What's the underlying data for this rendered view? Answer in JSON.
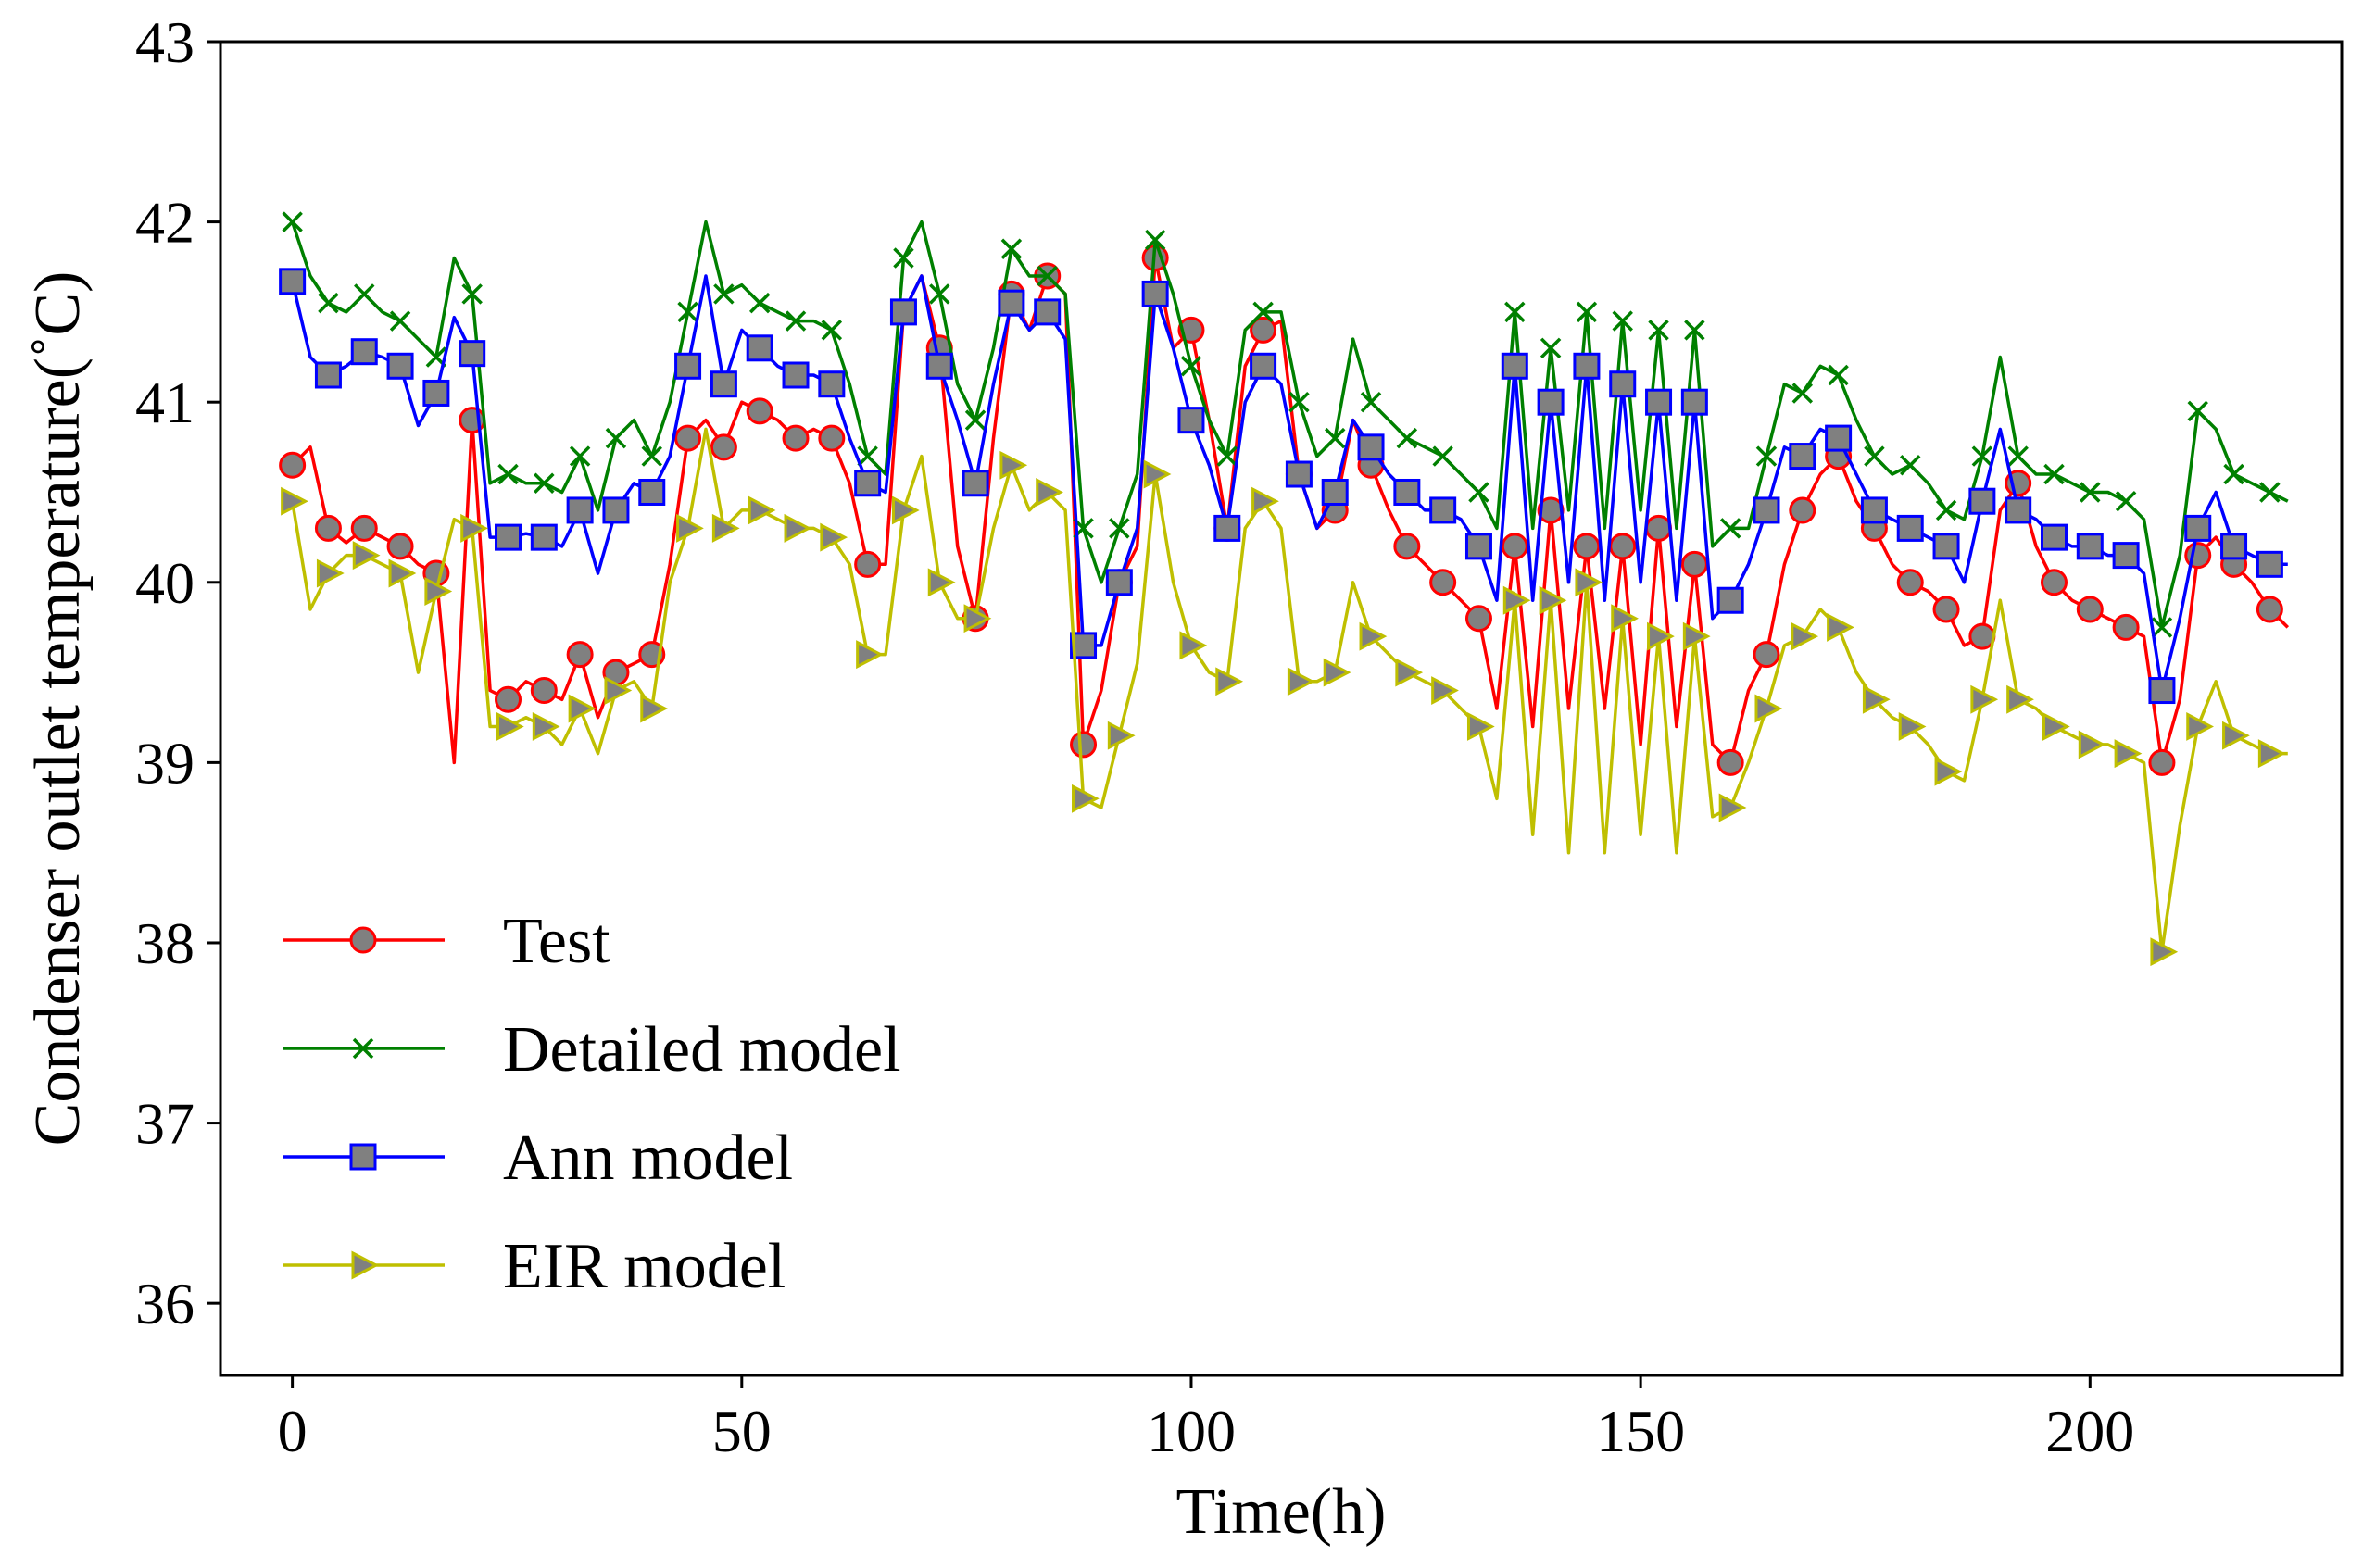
{
  "chart_data": {
    "type": "line",
    "title": "",
    "xlabel": "Time(h)",
    "ylabel": "Condenser outlet temperature(˚C)",
    "xlim": [
      -8,
      228
    ],
    "ylim": [
      35.6,
      43.0
    ],
    "xticks": [
      0,
      50,
      100,
      150,
      200
    ],
    "xtick_labels": [
      "0",
      "50",
      "100",
      "150",
      "200"
    ],
    "yticks": [
      36,
      37,
      38,
      39,
      40,
      41,
      42,
      43
    ],
    "ytick_labels": [
      "36",
      "37",
      "38",
      "39",
      "40",
      "41",
      "42",
      "43"
    ],
    "grid": false,
    "legend_position": "lower-left",
    "series": [
      {
        "name": "Test",
        "color": "#ff0000",
        "marker": "circle",
        "marker_face": "#808080",
        "x": [
          0,
          2,
          4,
          6,
          8,
          10,
          12,
          14,
          16,
          18,
          20,
          22,
          24,
          26,
          28,
          30,
          32,
          34,
          36,
          38,
          40,
          42,
          44,
          46,
          48,
          50,
          52,
          54,
          56,
          58,
          60,
          62,
          64,
          66,
          68,
          70,
          72,
          74,
          76,
          78,
          80,
          82,
          84,
          86,
          88,
          90,
          92,
          94,
          96,
          98,
          100,
          102,
          104,
          106,
          108,
          110,
          112,
          114,
          116,
          118,
          120,
          122,
          124,
          126,
          128,
          130,
          132,
          134,
          136,
          138,
          140,
          142,
          144,
          146,
          148,
          150,
          152,
          154,
          156,
          158,
          160,
          162,
          164,
          166,
          168,
          170,
          172,
          174,
          176,
          178,
          180,
          182,
          184,
          186,
          188,
          190,
          192,
          194,
          196,
          198,
          200,
          202,
          204,
          206,
          208,
          210,
          212,
          214,
          216,
          218,
          220,
          222
        ],
        "values": [
          40.65,
          40.75,
          40.3,
          40.22,
          40.3,
          40.25,
          40.2,
          40.1,
          40.05,
          39.0,
          40.9,
          39.4,
          39.35,
          39.45,
          39.4,
          39.35,
          39.6,
          39.25,
          39.5,
          39.55,
          39.6,
          40.1,
          40.8,
          40.9,
          40.75,
          41.0,
          40.95,
          40.9,
          40.8,
          40.85,
          40.8,
          40.55,
          40.1,
          40.1,
          41.5,
          41.7,
          41.3,
          40.2,
          39.8,
          40.8,
          41.6,
          41.4,
          41.7,
          41.6,
          39.1,
          39.4,
          40.0,
          40.2,
          41.8,
          41.3,
          41.4,
          40.9,
          40.3,
          41.2,
          41.4,
          41.45,
          40.6,
          40.3,
          40.4,
          40.9,
          40.65,
          40.4,
          40.2,
          40.1,
          40.0,
          39.9,
          39.8,
          39.3,
          40.2,
          39.2,
          40.4,
          39.3,
          40.2,
          39.3,
          40.2,
          39.1,
          40.3,
          39.2,
          40.1,
          39.1,
          39.0,
          39.4,
          39.6,
          40.1,
          40.4,
          40.6,
          40.7,
          40.45,
          40.3,
          40.1,
          40.0,
          39.95,
          39.85,
          39.65,
          39.7,
          40.4,
          40.55,
          40.2,
          40.0,
          39.9,
          39.85,
          39.8,
          39.75,
          39.7,
          39.0,
          39.35,
          40.15,
          40.25,
          40.1,
          40.0,
          39.85,
          39.75
        ]
      },
      {
        "name": "Detailed model",
        "color": "#008000",
        "marker": "x",
        "marker_face": "#008000",
        "x": [
          0,
          2,
          4,
          6,
          8,
          10,
          12,
          14,
          16,
          18,
          20,
          22,
          24,
          26,
          28,
          30,
          32,
          34,
          36,
          38,
          40,
          42,
          44,
          46,
          48,
          50,
          52,
          54,
          56,
          58,
          60,
          62,
          64,
          66,
          68,
          70,
          72,
          74,
          76,
          78,
          80,
          82,
          84,
          86,
          88,
          90,
          92,
          94,
          96,
          98,
          100,
          102,
          104,
          106,
          108,
          110,
          112,
          114,
          116,
          118,
          120,
          122,
          124,
          126,
          128,
          130,
          132,
          134,
          136,
          138,
          140,
          142,
          144,
          146,
          148,
          150,
          152,
          154,
          156,
          158,
          160,
          162,
          164,
          166,
          168,
          170,
          172,
          174,
          176,
          178,
          180,
          182,
          184,
          186,
          188,
          190,
          192,
          194,
          196,
          198,
          200,
          202,
          204,
          206,
          208,
          210,
          212,
          214,
          216,
          218,
          220,
          222
        ],
        "values": [
          42.0,
          41.7,
          41.55,
          41.5,
          41.6,
          41.5,
          41.45,
          41.35,
          41.25,
          41.8,
          41.6,
          40.55,
          40.6,
          40.55,
          40.55,
          40.5,
          40.7,
          40.4,
          40.8,
          40.9,
          40.7,
          41.0,
          41.5,
          42.0,
          41.6,
          41.65,
          41.55,
          41.5,
          41.45,
          41.45,
          41.4,
          41.1,
          40.7,
          40.6,
          41.8,
          42.0,
          41.6,
          41.1,
          40.9,
          41.3,
          41.85,
          41.7,
          41.7,
          41.6,
          40.3,
          40.0,
          40.3,
          40.6,
          41.9,
          41.6,
          41.2,
          40.9,
          40.7,
          41.4,
          41.5,
          41.5,
          41.0,
          40.7,
          40.8,
          41.35,
          41.0,
          40.9,
          40.8,
          40.75,
          40.7,
          40.6,
          40.5,
          40.3,
          41.5,
          40.3,
          41.3,
          40.4,
          41.5,
          40.3,
          41.45,
          40.4,
          41.4,
          40.3,
          41.4,
          40.2,
          40.3,
          40.3,
          40.7,
          41.1,
          41.05,
          41.2,
          41.15,
          40.9,
          40.7,
          40.6,
          40.65,
          40.55,
          40.4,
          40.35,
          40.7,
          41.25,
          40.7,
          40.6,
          40.6,
          40.55,
          40.5,
          40.5,
          40.45,
          40.35,
          39.75,
          40.15,
          40.95,
          40.85,
          40.6,
          40.55,
          40.5,
          40.45
        ]
      },
      {
        "name": "Ann model",
        "color": "#0000ff",
        "marker": "square",
        "marker_face": "#808080",
        "x": [
          0,
          2,
          4,
          6,
          8,
          10,
          12,
          14,
          16,
          18,
          20,
          22,
          24,
          26,
          28,
          30,
          32,
          34,
          36,
          38,
          40,
          42,
          44,
          46,
          48,
          50,
          52,
          54,
          56,
          58,
          60,
          62,
          64,
          66,
          68,
          70,
          72,
          74,
          76,
          78,
          80,
          82,
          84,
          86,
          88,
          90,
          92,
          94,
          96,
          98,
          100,
          102,
          104,
          106,
          108,
          110,
          112,
          114,
          116,
          118,
          120,
          122,
          124,
          126,
          128,
          130,
          132,
          134,
          136,
          138,
          140,
          142,
          144,
          146,
          148,
          150,
          152,
          154,
          156,
          158,
          160,
          162,
          164,
          166,
          168,
          170,
          172,
          174,
          176,
          178,
          180,
          182,
          184,
          186,
          188,
          190,
          192,
          194,
          196,
          198,
          200,
          202,
          204,
          206,
          208,
          210,
          212,
          214,
          216,
          218,
          220,
          222
        ],
        "values": [
          41.67,
          41.25,
          41.15,
          41.2,
          41.28,
          41.25,
          41.2,
          40.87,
          41.05,
          41.47,
          41.27,
          40.25,
          40.25,
          40.27,
          40.25,
          40.2,
          40.4,
          40.05,
          40.4,
          40.55,
          40.5,
          40.7,
          41.2,
          41.7,
          41.1,
          41.4,
          41.3,
          41.2,
          41.15,
          41.15,
          41.1,
          40.8,
          40.55,
          40.5,
          41.5,
          41.7,
          41.2,
          40.9,
          40.55,
          41.1,
          41.55,
          41.4,
          41.5,
          41.35,
          39.65,
          39.65,
          40.0,
          40.3,
          41.6,
          41.3,
          40.9,
          40.65,
          40.3,
          41.0,
          41.2,
          41.1,
          40.6,
          40.3,
          40.5,
          40.9,
          40.75,
          40.6,
          40.5,
          40.4,
          40.4,
          40.35,
          40.2,
          39.9,
          41.2,
          39.9,
          41.0,
          40.0,
          41.2,
          39.9,
          41.1,
          40.0,
          41.0,
          39.9,
          41.0,
          39.8,
          39.9,
          40.1,
          40.4,
          40.75,
          40.7,
          40.85,
          40.8,
          40.6,
          40.4,
          40.35,
          40.3,
          40.25,
          40.2,
          40.0,
          40.45,
          40.85,
          40.4,
          40.35,
          40.25,
          40.2,
          40.2,
          40.15,
          40.15,
          40.05,
          39.4,
          39.8,
          40.3,
          40.5,
          40.2,
          40.15,
          40.1,
          40.1
        ]
      },
      {
        "name": "EIR model",
        "color": "#bfbf00",
        "marker": "triangle-right",
        "marker_face": "#808080",
        "x": [
          0,
          2,
          4,
          6,
          8,
          10,
          12,
          14,
          16,
          18,
          20,
          22,
          24,
          26,
          28,
          30,
          32,
          34,
          36,
          38,
          40,
          42,
          44,
          46,
          48,
          50,
          52,
          54,
          56,
          58,
          60,
          62,
          64,
          66,
          68,
          70,
          72,
          74,
          76,
          78,
          80,
          82,
          84,
          86,
          88,
          90,
          92,
          94,
          96,
          98,
          100,
          102,
          104,
          106,
          108,
          110,
          112,
          114,
          116,
          118,
          120,
          122,
          124,
          126,
          128,
          130,
          132,
          134,
          136,
          138,
          140,
          142,
          144,
          146,
          148,
          150,
          152,
          154,
          156,
          158,
          160,
          162,
          164,
          166,
          168,
          170,
          172,
          174,
          176,
          178,
          180,
          182,
          184,
          186,
          188,
          190,
          192,
          194,
          196,
          198,
          200,
          202,
          204,
          206,
          208,
          210,
          212,
          214,
          216,
          218,
          220,
          222
        ],
        "values": [
          40.45,
          39.85,
          40.05,
          40.15,
          40.15,
          40.1,
          40.05,
          39.5,
          39.95,
          40.35,
          40.3,
          39.2,
          39.2,
          39.25,
          39.2,
          39.1,
          39.3,
          39.05,
          39.4,
          39.45,
          39.3,
          40.0,
          40.3,
          40.85,
          40.3,
          40.4,
          40.4,
          40.35,
          40.3,
          40.3,
          40.25,
          40.1,
          39.6,
          39.6,
          40.4,
          40.7,
          40.0,
          39.8,
          39.8,
          40.3,
          40.65,
          40.4,
          40.5,
          40.4,
          38.8,
          38.75,
          39.15,
          39.55,
          40.6,
          40.0,
          39.65,
          39.5,
          39.45,
          40.3,
          40.45,
          40.3,
          39.45,
          39.45,
          39.5,
          40.0,
          39.7,
          39.6,
          39.5,
          39.45,
          39.4,
          39.3,
          39.2,
          38.8,
          39.9,
          38.6,
          39.9,
          38.5,
          40.0,
          38.5,
          39.8,
          38.6,
          39.7,
          38.5,
          39.7,
          38.7,
          38.75,
          39.0,
          39.3,
          39.65,
          39.7,
          39.85,
          39.75,
          39.5,
          39.35,
          39.25,
          39.2,
          39.1,
          38.95,
          38.9,
          39.35,
          39.9,
          39.35,
          39.3,
          39.2,
          39.15,
          39.1,
          39.1,
          39.05,
          39.0,
          37.95,
          38.65,
          39.2,
          39.45,
          39.15,
          39.1,
          39.05,
          39.05
        ]
      }
    ]
  }
}
